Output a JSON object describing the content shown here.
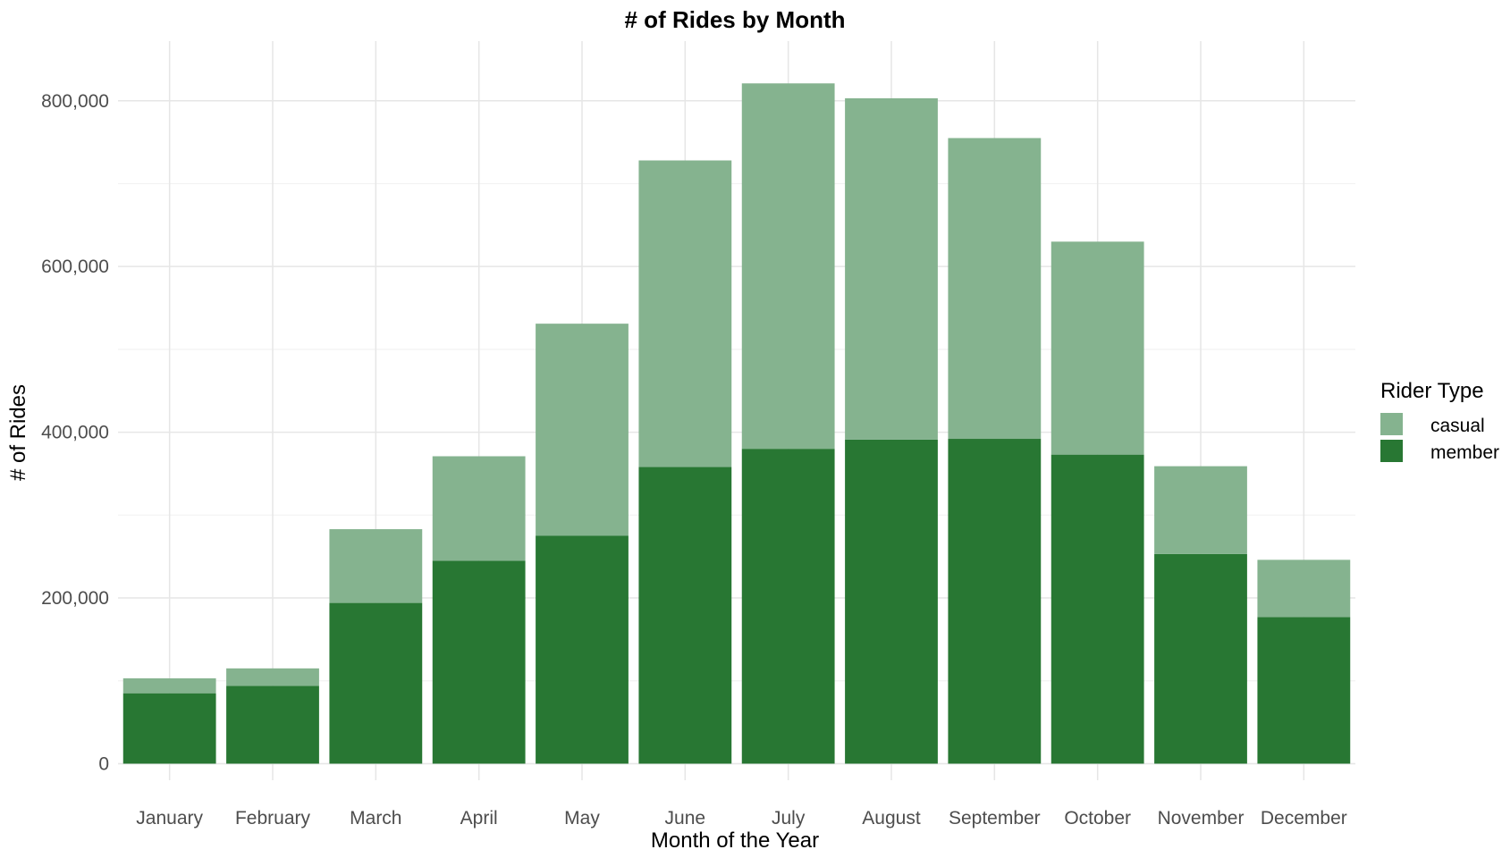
{
  "chart_data": {
    "type": "bar",
    "stacked": true,
    "title": "# of Rides by Month",
    "xlabel": "Month of the Year",
    "ylabel": "# of Rides",
    "categories": [
      "January",
      "February",
      "March",
      "April",
      "May",
      "June",
      "July",
      "August",
      "September",
      "October",
      "November",
      "December"
    ],
    "series": [
      {
        "name": "casual",
        "color": "#85b38f",
        "values": [
          18000,
          21000,
          89000,
          126000,
          256000,
          370000,
          441000,
          412000,
          363000,
          257000,
          106000,
          69000
        ]
      },
      {
        "name": "member",
        "color": "#287733",
        "values": [
          85000,
          94000,
          194000,
          245000,
          275000,
          358000,
          380000,
          391000,
          392000,
          373000,
          253000,
          177000
        ]
      }
    ],
    "ylim": [
      -20000,
      872000
    ],
    "yticks": [
      0,
      200000,
      400000,
      600000,
      800000
    ],
    "ytick_labels": [
      "0",
      "200,000",
      "400,000",
      "600,000",
      "800,000"
    ],
    "grid": true,
    "legend": {
      "title": "Rider Type",
      "position": "right"
    }
  }
}
